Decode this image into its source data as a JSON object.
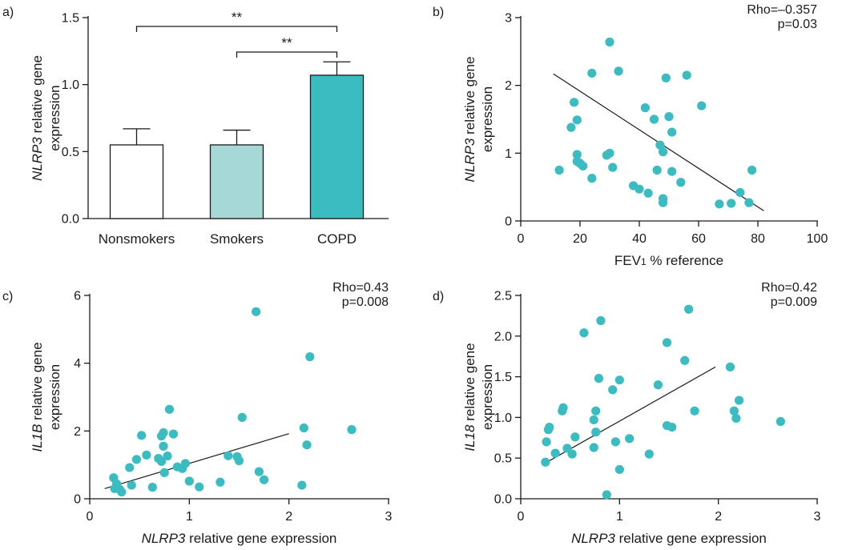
{
  "colors": {
    "teal": "#3bbcc0",
    "light_teal": "#a6d8d8",
    "white": "#ffffff",
    "ink": "#1a1a1a"
  },
  "chart_data": [
    {
      "panel": "a)",
      "type": "bar",
      "categories": [
        "Nonsmokers",
        "Smokers",
        "COPD"
      ],
      "values": [
        0.55,
        0.55,
        1.07
      ],
      "errors": [
        0.12,
        0.11,
        0.1
      ],
      "bar_colors": [
        "#ffffff",
        "#a6d8d8",
        "#3bbcc0"
      ],
      "ylabel_italic": "NLRP3",
      "ylabel_rest": " relative gene",
      "ylabel_line2": "expression",
      "xlabel": "",
      "ylim": [
        0,
        1.5
      ],
      "yticks": [
        "0.0",
        "0.5",
        "1.0",
        "1.5"
      ],
      "significance": [
        {
          "from": 0,
          "to": 2,
          "label": "**"
        },
        {
          "from": 1,
          "to": 2,
          "label": "**"
        }
      ]
    },
    {
      "panel": "b)",
      "type": "scatter",
      "ylabel_italic": "NLRP3",
      "ylabel_rest": " relative gene",
      "ylabel_line2": "expression",
      "xlabel_pre": "FEV",
      "xlabel_sub": "1",
      "xlabel_post": " % reference",
      "xlim": [
        0,
        100
      ],
      "ylim": [
        0,
        3
      ],
      "xticks": [
        0,
        20,
        40,
        60,
        80,
        100
      ],
      "yticks": [
        0,
        1,
        2,
        3
      ],
      "stat_line1": "Rho=–0.357",
      "stat_line2": "p=0.03",
      "fit": [
        [
          11,
          2.17
        ],
        [
          82,
          0.15
        ]
      ],
      "points": [
        [
          13,
          0.75
        ],
        [
          17,
          1.38
        ],
        [
          18,
          1.75
        ],
        [
          19,
          1.49
        ],
        [
          19,
          0.98
        ],
        [
          19,
          0.88
        ],
        [
          20,
          0.85
        ],
        [
          21,
          0.81
        ],
        [
          24,
          2.18
        ],
        [
          24,
          0.63
        ],
        [
          29,
          0.97
        ],
        [
          30,
          2.64
        ],
        [
          30,
          1.0
        ],
        [
          31,
          0.79
        ],
        [
          33,
          2.21
        ],
        [
          38,
          0.52
        ],
        [
          40,
          0.47
        ],
        [
          42,
          1.67
        ],
        [
          43,
          0.41
        ],
        [
          45,
          1.5
        ],
        [
          46,
          0.75
        ],
        [
          47,
          1.12
        ],
        [
          48,
          1.02
        ],
        [
          48,
          0.33
        ],
        [
          48,
          0.27
        ],
        [
          49,
          2.11
        ],
        [
          50,
          1.54
        ],
        [
          51,
          1.31
        ],
        [
          51,
          0.73
        ],
        [
          54,
          0.57
        ],
        [
          56,
          2.15
        ],
        [
          61,
          1.7
        ],
        [
          67,
          0.25
        ],
        [
          71,
          0.26
        ],
        [
          74,
          0.42
        ],
        [
          77,
          0.27
        ],
        [
          78,
          0.75
        ]
      ]
    },
    {
      "panel": "c)",
      "type": "scatter",
      "ylabel_italic": "IL1B",
      "ylabel_rest": " relative gene",
      "ylabel_line2": "expression",
      "xlabel_italic": "NLRP3",
      "xlabel_rest": " relative gene expression",
      "xlim": [
        0,
        3
      ],
      "ylim": [
        0,
        6
      ],
      "xticks": [
        0,
        1,
        2,
        3
      ],
      "yticks": [
        0,
        2,
        4,
        6
      ],
      "stat_line1": "Rho=0.43",
      "stat_line2": "p=0.008",
      "fit": [
        [
          0.15,
          0.3
        ],
        [
          2.0,
          1.92
        ]
      ],
      "points": [
        [
          0.24,
          0.62
        ],
        [
          0.25,
          0.3
        ],
        [
          0.27,
          0.44
        ],
        [
          0.3,
          0.28
        ],
        [
          0.32,
          0.2
        ],
        [
          0.4,
          0.92
        ],
        [
          0.42,
          0.4
        ],
        [
          0.47,
          1.16
        ],
        [
          0.52,
          1.87
        ],
        [
          0.57,
          1.29
        ],
        [
          0.63,
          0.34
        ],
        [
          0.69,
          1.19
        ],
        [
          0.72,
          1.85
        ],
        [
          0.72,
          1.1
        ],
        [
          0.74,
          1.95
        ],
        [
          0.74,
          1.55
        ],
        [
          0.75,
          0.77
        ],
        [
          0.78,
          1.26
        ],
        [
          0.8,
          2.64
        ],
        [
          0.84,
          1.91
        ],
        [
          0.88,
          0.94
        ],
        [
          0.93,
          0.89
        ],
        [
          0.96,
          1.04
        ],
        [
          1.0,
          0.52
        ],
        [
          1.1,
          0.35
        ],
        [
          1.31,
          0.49
        ],
        [
          1.39,
          1.27
        ],
        [
          1.48,
          1.24
        ],
        [
          1.5,
          1.12
        ],
        [
          1.53,
          2.4
        ],
        [
          1.67,
          5.52
        ],
        [
          1.7,
          0.8
        ],
        [
          1.75,
          0.56
        ],
        [
          2.13,
          0.4
        ],
        [
          2.15,
          2.09
        ],
        [
          2.18,
          1.59
        ],
        [
          2.21,
          4.19
        ],
        [
          2.63,
          2.04
        ]
      ]
    },
    {
      "panel": "d)",
      "type": "scatter",
      "ylabel_italic": "IL18",
      "ylabel_rest": " relative gene",
      "ylabel_line2": "expression",
      "xlabel_italic": "NLRP3",
      "xlabel_rest": " relative gene expression",
      "xlim": [
        0,
        3
      ],
      "ylim": [
        0,
        2.5
      ],
      "xticks": [
        0,
        1,
        2,
        3
      ],
      "yticks": [
        "0.0",
        "0.5",
        "1.0",
        "1.5",
        "2.0",
        "2.5"
      ],
      "stat_line1": "Rho=0.42",
      "stat_line2": "p=0.009",
      "fit": [
        [
          0.25,
          0.44
        ],
        [
          1.97,
          1.62
        ]
      ],
      "points": [
        [
          0.25,
          0.45
        ],
        [
          0.26,
          0.7
        ],
        [
          0.28,
          0.85
        ],
        [
          0.29,
          0.88
        ],
        [
          0.35,
          0.56
        ],
        [
          0.42,
          1.08
        ],
        [
          0.43,
          1.12
        ],
        [
          0.47,
          0.62
        ],
        [
          0.52,
          0.55
        ],
        [
          0.55,
          0.76
        ],
        [
          0.64,
          2.04
        ],
        [
          0.74,
          0.63
        ],
        [
          0.74,
          0.97
        ],
        [
          0.76,
          1.08
        ],
        [
          0.76,
          0.82
        ],
        [
          0.79,
          1.48
        ],
        [
          0.81,
          2.19
        ],
        [
          0.87,
          0.05
        ],
        [
          0.93,
          1.34
        ],
        [
          0.96,
          0.7
        ],
        [
          1.0,
          1.46
        ],
        [
          1.0,
          0.36
        ],
        [
          1.1,
          0.74
        ],
        [
          1.3,
          0.55
        ],
        [
          1.39,
          1.4
        ],
        [
          1.48,
          1.92
        ],
        [
          1.48,
          0.9
        ],
        [
          1.53,
          0.88
        ],
        [
          1.66,
          1.7
        ],
        [
          1.7,
          2.33
        ],
        [
          1.76,
          1.08
        ],
        [
          2.12,
          1.62
        ],
        [
          2.16,
          1.08
        ],
        [
          2.18,
          0.99
        ],
        [
          2.21,
          1.21
        ],
        [
          2.63,
          0.95
        ]
      ]
    }
  ]
}
